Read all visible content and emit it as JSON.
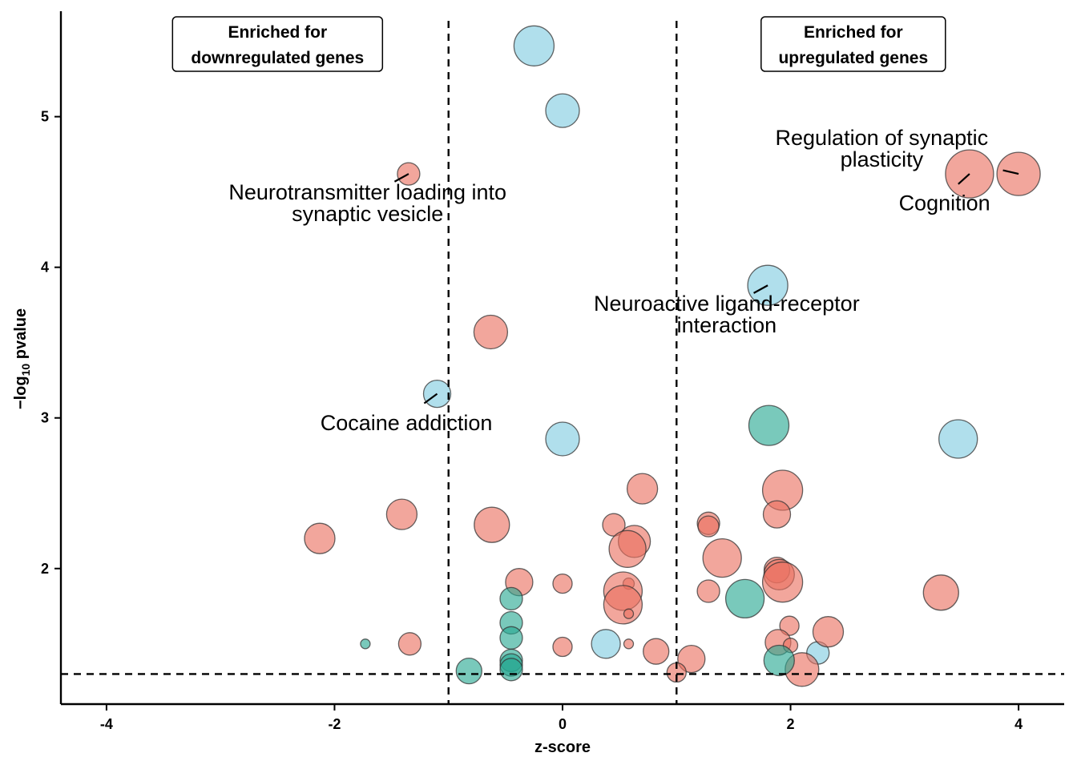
{
  "chart_data": {
    "type": "scatter",
    "xlabel": "z-score",
    "ylabel_main": "−log",
    "ylabel_sub": "10",
    "ylabel_tail": " pvalue",
    "xlim": [
      -4.4,
      4.4
    ],
    "ylim": [
      1.1,
      5.7
    ],
    "xticks": [
      -4,
      -2,
      0,
      2,
      4
    ],
    "yticks": [
      2,
      3,
      4,
      5
    ],
    "thresholds": {
      "x": [
        -1,
        1
      ],
      "y": 1.3
    },
    "colors": {
      "red": "#ea6f5f",
      "blue": "#7fcce0",
      "teal": "#26a892"
    },
    "boxes": [
      {
        "lines": [
          "Enriched for",
          "downregulated genes"
        ],
        "cx": -2.5
      },
      {
        "lines": [
          "Enriched for",
          "upregulated genes"
        ],
        "cx": 2.55
      }
    ],
    "annotations": [
      {
        "lines": [
          "Neurotransmitter loading into",
          "synaptic vesicle"
        ],
        "x": -1.71,
        "y": 4.47,
        "px": -1.35,
        "py": 4.62
      },
      {
        "lines": [
          "Cocaine addiction"
        ],
        "x": -1.37,
        "y": 3.01,
        "px": -1.1,
        "py": 3.16
      },
      {
        "lines": [
          "Neuroactive ligand-receptor",
          "interaction"
        ],
        "x": 1.44,
        "y": 3.73,
        "px": 1.8,
        "py": 3.88
      },
      {
        "lines": [
          "Regulation of synaptic",
          "plasticity"
        ],
        "x": 2.8,
        "y": 4.83,
        "px": 4.0,
        "py": 4.62
      },
      {
        "lines": [
          "Cognition"
        ],
        "x": 3.35,
        "y": 4.47,
        "px": 3.57,
        "py": 4.62
      }
    ],
    "points": [
      {
        "x": -0.25,
        "y": 5.47,
        "r": 25,
        "c": "blue"
      },
      {
        "x": 0.0,
        "y": 5.04,
        "r": 21,
        "c": "blue"
      },
      {
        "x": 1.8,
        "y": 3.88,
        "r": 25,
        "c": "blue"
      },
      {
        "x": -1.1,
        "y": 3.16,
        "r": 17,
        "c": "blue"
      },
      {
        "x": 0.0,
        "y": 2.86,
        "r": 21,
        "c": "blue"
      },
      {
        "x": 3.47,
        "y": 2.86,
        "r": 24,
        "c": "blue"
      },
      {
        "x": 0.38,
        "y": 1.5,
        "r": 18,
        "c": "blue"
      },
      {
        "x": 2.24,
        "y": 1.44,
        "r": 14,
        "c": "blue"
      },
      {
        "x": -1.35,
        "y": 4.62,
        "r": 14,
        "c": "red"
      },
      {
        "x": 3.57,
        "y": 4.62,
        "r": 30,
        "c": "red"
      },
      {
        "x": 4.0,
        "y": 4.62,
        "r": 27,
        "c": "red"
      },
      {
        "x": -0.63,
        "y": 3.57,
        "r": 21,
        "c": "red"
      },
      {
        "x": 0.7,
        "y": 2.53,
        "r": 19,
        "c": "red"
      },
      {
        "x": 1.93,
        "y": 2.52,
        "r": 25,
        "c": "red"
      },
      {
        "x": -1.41,
        "y": 2.36,
        "r": 19,
        "c": "red"
      },
      {
        "x": 1.88,
        "y": 2.36,
        "r": 17,
        "c": "red"
      },
      {
        "x": -2.13,
        "y": 2.2,
        "r": 19,
        "c": "red"
      },
      {
        "x": -0.62,
        "y": 2.29,
        "r": 22,
        "c": "red"
      },
      {
        "x": 0.45,
        "y": 2.29,
        "r": 14,
        "c": "red"
      },
      {
        "x": 1.28,
        "y": 2.3,
        "r": 14,
        "c": "red"
      },
      {
        "x": 1.28,
        "y": 2.28,
        "r": 13,
        "c": "red"
      },
      {
        "x": 0.63,
        "y": 2.18,
        "r": 20,
        "c": "red"
      },
      {
        "x": 0.57,
        "y": 2.13,
        "r": 23,
        "c": "red"
      },
      {
        "x": 1.4,
        "y": 2.07,
        "r": 24,
        "c": "red"
      },
      {
        "x": 1.88,
        "y": 1.99,
        "r": 16,
        "c": "red"
      },
      {
        "x": 1.9,
        "y": 1.96,
        "r": 19,
        "c": "red"
      },
      {
        "x": 1.93,
        "y": 1.91,
        "r": 25,
        "c": "red"
      },
      {
        "x": -0.38,
        "y": 1.91,
        "r": 17,
        "c": "red"
      },
      {
        "x": 0.0,
        "y": 1.9,
        "r": 12,
        "c": "red"
      },
      {
        "x": 0.58,
        "y": 1.9,
        "r": 7,
        "c": "red"
      },
      {
        "x": 0.53,
        "y": 1.85,
        "r": 24,
        "c": "red"
      },
      {
        "x": 0.53,
        "y": 1.76,
        "r": 24,
        "c": "red"
      },
      {
        "x": 1.28,
        "y": 1.85,
        "r": 14,
        "c": "red"
      },
      {
        "x": 3.32,
        "y": 1.84,
        "r": 22,
        "c": "red"
      },
      {
        "x": 0.58,
        "y": 1.7,
        "r": 6,
        "c": "red"
      },
      {
        "x": 1.99,
        "y": 1.62,
        "r": 12,
        "c": "red"
      },
      {
        "x": 2.33,
        "y": 1.58,
        "r": 19,
        "c": "red"
      },
      {
        "x": -1.34,
        "y": 1.5,
        "r": 14,
        "c": "red"
      },
      {
        "x": 0.0,
        "y": 1.48,
        "r": 12,
        "c": "red"
      },
      {
        "x": 0.58,
        "y": 1.5,
        "r": 6,
        "c": "red"
      },
      {
        "x": 0.82,
        "y": 1.45,
        "r": 16,
        "c": "red"
      },
      {
        "x": 1.13,
        "y": 1.4,
        "r": 17,
        "c": "red"
      },
      {
        "x": 1.89,
        "y": 1.51,
        "r": 16,
        "c": "red"
      },
      {
        "x": 2.0,
        "y": 1.49,
        "r": 9,
        "c": "red"
      },
      {
        "x": 2.1,
        "y": 1.33,
        "r": 21,
        "c": "red"
      },
      {
        "x": 1.0,
        "y": 1.31,
        "r": 12,
        "c": "red"
      },
      {
        "x": 1.81,
        "y": 2.95,
        "r": 25,
        "c": "teal"
      },
      {
        "x": 1.6,
        "y": 1.8,
        "r": 24,
        "c": "teal"
      },
      {
        "x": -0.45,
        "y": 1.8,
        "r": 14,
        "c": "teal"
      },
      {
        "x": -0.45,
        "y": 1.64,
        "r": 14,
        "c": "teal"
      },
      {
        "x": -0.45,
        "y": 1.54,
        "r": 14,
        "c": "teal"
      },
      {
        "x": -0.45,
        "y": 1.39,
        "r": 14,
        "c": "teal"
      },
      {
        "x": -0.45,
        "y": 1.36,
        "r": 14,
        "c": "teal"
      },
      {
        "x": -0.45,
        "y": 1.33,
        "r": 14,
        "c": "teal"
      },
      {
        "x": -0.82,
        "y": 1.32,
        "r": 16,
        "c": "teal"
      },
      {
        "x": -1.73,
        "y": 1.5,
        "r": 6,
        "c": "teal"
      },
      {
        "x": 1.9,
        "y": 1.39,
        "r": 19,
        "c": "teal"
      }
    ]
  }
}
